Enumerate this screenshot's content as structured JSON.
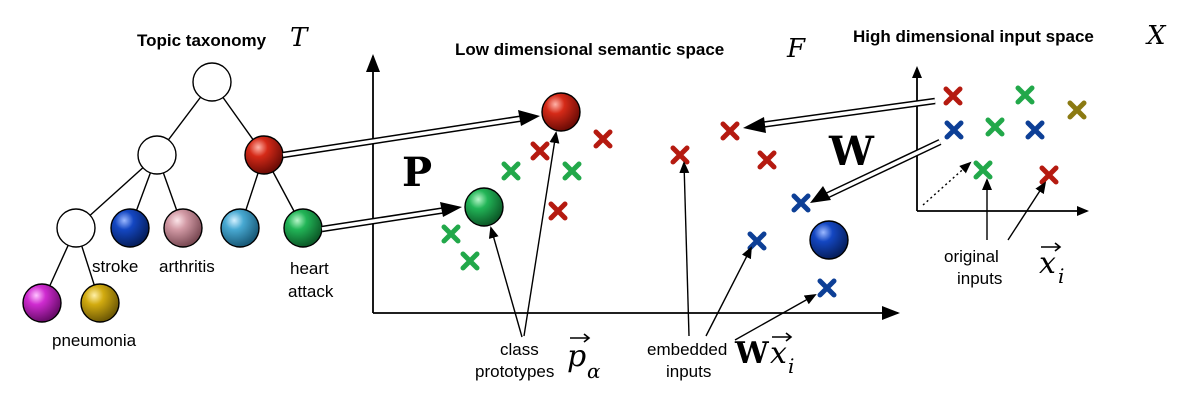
{
  "titles": {
    "taxonomy": "Topic taxonomy",
    "taxonomy_symbol": "T",
    "semantic": "Low dimensional semantic space",
    "semantic_symbol": "F",
    "input": "High dimensional input space",
    "input_symbol": "X"
  },
  "labels": {
    "stroke": "stroke",
    "arthritis": "arthritis",
    "heart_line1": "heart",
    "heart_line2": "attack",
    "pneumonia": "pneumonia",
    "class_line1": "class",
    "class_line2": "prototypes",
    "embedded_line1": "embedded",
    "embedded_line2": "inputs",
    "original_line1": "original",
    "original_line2": "inputs"
  },
  "math": {
    "P": "P",
    "W": "W",
    "p_alpha_base": "p",
    "p_alpha_sub": "α",
    "wx_bold": "W",
    "wx_base": "x",
    "wx_sub": "i",
    "x_i_base": "x",
    "x_i_sub": "i"
  },
  "colors": {
    "red": "#b51a10",
    "green": "#22a84a",
    "blue": "#0d3f96",
    "olive": "#8b7a12",
    "pink": "#c98a96",
    "teal": "#3aa0c8",
    "magenta": "#c21fc2",
    "gold": "#c9a410"
  }
}
